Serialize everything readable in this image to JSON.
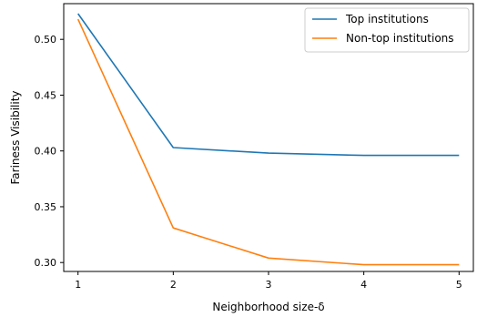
{
  "chart_data": {
    "type": "line",
    "xlabel": "Neighborhood size-δ",
    "ylabel": "Fariness Visibility",
    "x": [
      1,
      2,
      3,
      4,
      5
    ],
    "xticks": [
      "1",
      "2",
      "3",
      "4",
      "5"
    ],
    "yticks": [
      0.3,
      0.35,
      0.4,
      0.45,
      0.5
    ],
    "ytick_labels": [
      "0.30",
      "0.35",
      "0.40",
      "0.45",
      "0.50"
    ],
    "xlim": [
      0.85,
      5.15
    ],
    "ylim": [
      0.292,
      0.532
    ],
    "grid": false,
    "legend_position": "top-right",
    "series": [
      {
        "name": "Top institutions",
        "color": "#1f77b4",
        "values": [
          0.523,
          0.403,
          0.398,
          0.396,
          0.396
        ]
      },
      {
        "name": "Non-top institutions",
        "color": "#ff7f0e",
        "values": [
          0.518,
          0.331,
          0.304,
          0.298,
          0.298
        ]
      }
    ]
  }
}
